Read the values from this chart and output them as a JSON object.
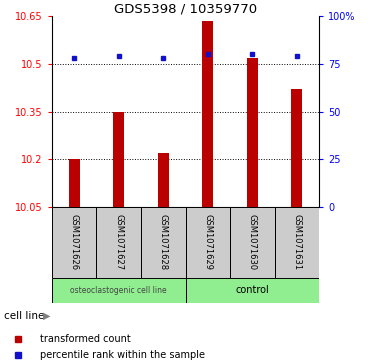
{
  "title": "GDS5398 / 10359770",
  "samples": [
    "GSM1071626",
    "GSM1071627",
    "GSM1071628",
    "GSM1071629",
    "GSM1071630",
    "GSM1071631"
  ],
  "transformed_counts": [
    10.2,
    10.35,
    10.22,
    10.635,
    10.52,
    10.42
  ],
  "percentile_ranks": [
    78,
    79,
    78,
    80,
    80,
    79
  ],
  "ylim_left": [
    10.05,
    10.65
  ],
  "yticks_left": [
    10.05,
    10.2,
    10.35,
    10.5,
    10.65
  ],
  "ytick_labels_left": [
    "10.05",
    "10.2",
    "10.35",
    "10.5",
    "10.65"
  ],
  "ylim_right": [
    0,
    100
  ],
  "yticks_right": [
    0,
    25,
    50,
    75,
    100
  ],
  "ytick_labels_right": [
    "0",
    "25",
    "50",
    "75",
    "100%"
  ],
  "bar_color": "#BB0000",
  "dot_color": "#1111CC",
  "group1_label": "osteoclastogenic cell line",
  "group2_label": "control",
  "group_color": "#90EE90",
  "sample_box_color": "#CCCCCC",
  "cell_line_label": "cell line",
  "legend_bar": "transformed count",
  "legend_dot": "percentile rank within the sample",
  "bar_width": 0.25,
  "base_value": 10.05
}
